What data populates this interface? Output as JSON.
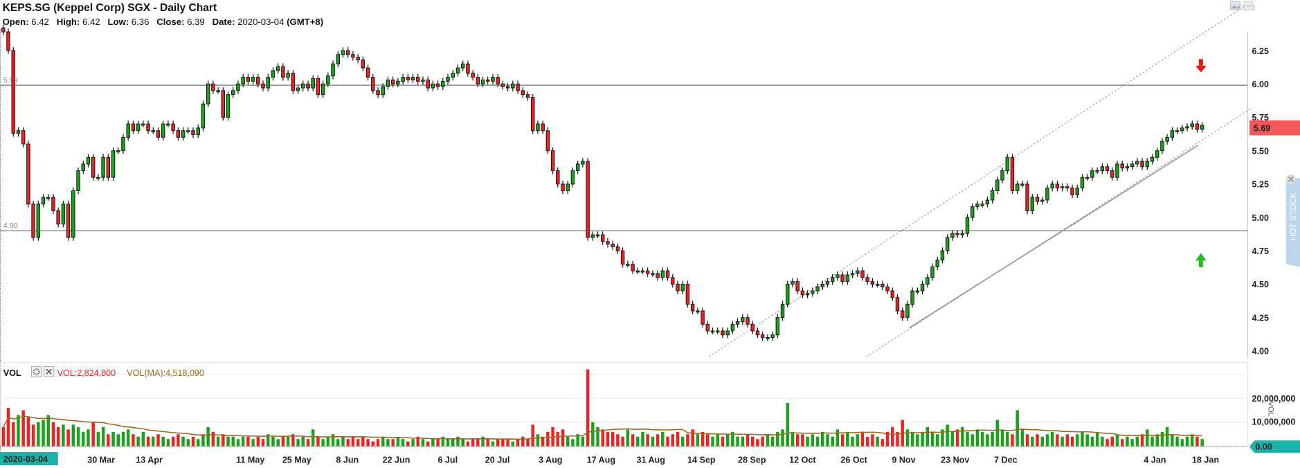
{
  "header": {
    "title": "KEPS.SG (Keppel Corp) SGX - Daily Chart",
    "open_label": "Open:",
    "open": "6.42",
    "high_label": "High:",
    "high": "6.42",
    "low_label": "Low:",
    "low": "6.36",
    "close_label": "Close:",
    "close": "6.39",
    "date_label": "Date:",
    "date": "2020-03-04",
    "tz": "(GMT+8)"
  },
  "levels": [
    {
      "label": "5.99",
      "value": 5.99
    },
    {
      "label": "4.90",
      "value": 4.9
    }
  ],
  "price_badge": "5.69",
  "volume_panel": {
    "title": "VOL",
    "vol_text": "VOL:2,824,800",
    "ma_text": "VOL(MA):4,518,090",
    "axis_title": "VOL",
    "zero_badge": "0.00",
    "ticks": [
      "20,000,000",
      "10,000,000"
    ]
  },
  "cursor_date_badge": "2020-03-04",
  "hot_stock_label": "HOT STOCK",
  "colors": {
    "up": "#1aa31a",
    "down": "#ee2222",
    "ma": "#a0661a",
    "price_badge": "#f55a5a",
    "teal": "#19b3aa"
  },
  "chart_data": {
    "type": "candlestick",
    "y_ticks": [
      "6.25",
      "6.00",
      "5.75",
      "5.50",
      "5.25",
      "5.00",
      "4.75",
      "4.50",
      "4.25",
      "4.00"
    ],
    "ylim": [
      3.99,
      6.45
    ],
    "x_ticks": [
      "30 Mar",
      "13 Apr",
      "11 May",
      "25 May",
      "8 Jun",
      "22 Jun",
      "6 Jul",
      "20 Jul",
      "3 Aug",
      "17 Aug",
      "31 Aug",
      "14 Sep",
      "28 Sep",
      "12 Oct",
      "26 Oct",
      "9 Nov",
      "23 Nov",
      "7 Dec",
      "4 Jan",
      "18 Jan"
    ],
    "first_open": 6.42,
    "close": [
      6.39,
      6.25,
      5.63,
      5.65,
      5.55,
      5.1,
      4.85,
      5.1,
      5.15,
      5.15,
      5.05,
      4.95,
      5.1,
      4.85,
      5.2,
      5.35,
      5.4,
      5.45,
      5.3,
      5.3,
      5.45,
      5.3,
      5.5,
      5.5,
      5.6,
      5.7,
      5.65,
      5.7,
      5.7,
      5.65,
      5.65,
      5.6,
      5.7,
      5.7,
      5.65,
      5.6,
      5.65,
      5.65,
      5.62,
      5.67,
      5.85,
      6.0,
      5.95,
      5.95,
      5.75,
      5.92,
      5.95,
      6.0,
      6.05,
      6.02,
      6.05,
      6.0,
      5.97,
      6.05,
      6.1,
      6.13,
      6.05,
      6.08,
      5.95,
      5.97,
      6.0,
      5.97,
      6.04,
      5.92,
      6.0,
      6.06,
      6.15,
      6.22,
      6.25,
      6.22,
      6.2,
      6.18,
      6.12,
      6.05,
      5.95,
      5.92,
      5.98,
      6.03,
      6.0,
      6.02,
      6.05,
      6.03,
      6.05,
      6.02,
      6.03,
      5.97,
      6.0,
      5.98,
      6.02,
      6.05,
      6.08,
      6.12,
      6.15,
      6.08,
      6.05,
      6.0,
      6.03,
      6.02,
      6.05,
      6.0,
      5.98,
      5.97,
      6.0,
      5.95,
      5.92,
      5.9,
      5.65,
      5.7,
      5.65,
      5.5,
      5.35,
      5.25,
      5.2,
      5.25,
      5.35,
      5.4,
      5.42,
      4.85,
      4.87,
      4.87,
      4.82,
      4.8,
      4.78,
      4.75,
      4.65,
      4.65,
      4.6,
      4.6,
      4.6,
      4.58,
      4.58,
      4.55,
      4.6,
      4.55,
      4.5,
      4.45,
      4.5,
      4.35,
      4.3,
      4.3,
      4.2,
      4.15,
      4.15,
      4.15,
      4.12,
      4.15,
      4.2,
      4.22,
      4.25,
      4.2,
      4.15,
      4.12,
      4.1,
      4.1,
      4.12,
      4.25,
      4.35,
      4.5,
      4.52,
      4.45,
      4.42,
      4.43,
      4.45,
      4.48,
      4.5,
      4.52,
      4.55,
      4.57,
      4.52,
      4.57,
      4.58,
      4.6,
      4.55,
      4.52,
      4.5,
      4.5,
      4.48,
      4.45,
      4.4,
      4.3,
      4.25,
      4.35,
      4.45,
      4.45,
      4.5,
      4.55,
      4.63,
      4.68,
      4.75,
      4.85,
      4.88,
      4.87,
      4.88,
      5.0,
      5.08,
      5.1,
      5.1,
      5.13,
      5.2,
      5.28,
      5.35,
      5.45,
      5.2,
      5.25,
      5.25,
      5.05,
      5.15,
      5.12,
      5.13,
      5.22,
      5.25,
      5.22,
      5.23,
      5.22,
      5.17,
      5.22,
      5.3,
      5.3,
      5.35,
      5.35,
      5.38,
      5.35,
      5.3,
      5.4,
      5.37,
      5.38,
      5.4,
      5.42,
      5.38,
      5.42,
      5.45,
      5.5,
      5.57,
      5.6,
      5.65,
      5.65,
      5.67,
      5.68,
      5.7,
      5.66,
      5.69
    ],
    "volume_millions": [
      8,
      16,
      10,
      13,
      15,
      12,
      9,
      10,
      11,
      13,
      10,
      8,
      9,
      7,
      9,
      8,
      6,
      7,
      10,
      6,
      8,
      5,
      6,
      5,
      6,
      7,
      5,
      4,
      6,
      4,
      4,
      5,
      4,
      3,
      4,
      5,
      4,
      3,
      4,
      3,
      5,
      8,
      6,
      4,
      5,
      4,
      4,
      3,
      4,
      4,
      3,
      4,
      3,
      5,
      4,
      3,
      4,
      4,
      5,
      3,
      4,
      3,
      7,
      4,
      3,
      4,
      5,
      3,
      4,
      3,
      4,
      3,
      4,
      3,
      2,
      3,
      4,
      3,
      3,
      4,
      3,
      2,
      3,
      4,
      3,
      2,
      3,
      3,
      4,
      3,
      3,
      4,
      3,
      2,
      3,
      3,
      4,
      3,
      2,
      3,
      3,
      3,
      2,
      3,
      4,
      3,
      9,
      5,
      4,
      6,
      8,
      6,
      7,
      4,
      3,
      5,
      4,
      32,
      10,
      8,
      7,
      6,
      6,
      5,
      4,
      7,
      5,
      4,
      6,
      5,
      4,
      5,
      6,
      4,
      5,
      6,
      4,
      5,
      7,
      5,
      6,
      5,
      4,
      5,
      4,
      5,
      6,
      4,
      4,
      5,
      4,
      3,
      4,
      5,
      4,
      6,
      7,
      18,
      6,
      5,
      5,
      4,
      5,
      4,
      6,
      5,
      4,
      7,
      5,
      6,
      4,
      5,
      6,
      4,
      5,
      4,
      3,
      6,
      8,
      6,
      11,
      7,
      6,
      5,
      6,
      8,
      6,
      5,
      7,
      9,
      6,
      7,
      8,
      6,
      5,
      7,
      6,
      5,
      6,
      11,
      7,
      6,
      5,
      15,
      7,
      5,
      4,
      5,
      4,
      5,
      6,
      5,
      4,
      5,
      4,
      5,
      6,
      5,
      4,
      6,
      4,
      3,
      4,
      5,
      3,
      4,
      3,
      4,
      5,
      7,
      4,
      5,
      6,
      8,
      5,
      4,
      3,
      4,
      5,
      4,
      3
    ],
    "volume_ma_period": 20,
    "volume_ylim": [
      0,
      35000000
    ],
    "trendlines": [
      {
        "style": "dotted",
        "from": [
          "14 Sep",
          3.96
        ],
        "to": [
          "18 Jan",
          6.58
        ]
      },
      {
        "style": "dotted",
        "from": [
          "26 Oct",
          3.96
        ],
        "to": [
          "18 Jan",
          5.78
        ]
      },
      {
        "style": "solid",
        "from": [
          "2 Nov",
          4.18
        ],
        "to": [
          "13 Jan",
          5.55
        ]
      }
    ],
    "annotations": [
      {
        "type": "arrow-down",
        "color": "#ee1111"
      },
      {
        "type": "arrow-up",
        "color": "#22bb22"
      }
    ]
  }
}
